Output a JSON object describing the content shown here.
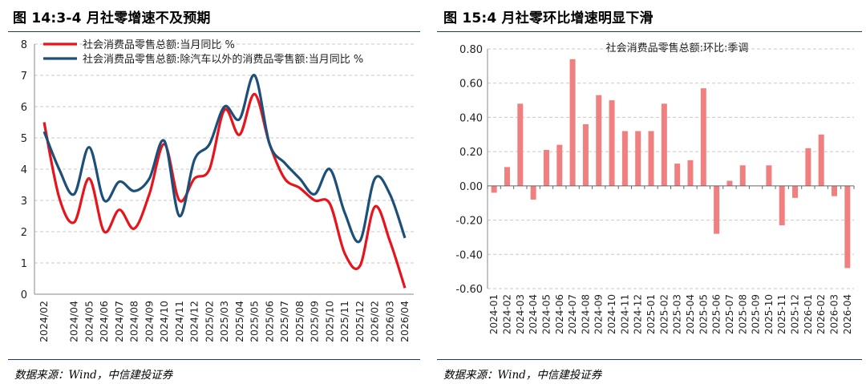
{
  "left": {
    "figure_title": "图 14:3-4 月社零增速不及预期",
    "source": "数据来源：Wind，中信建投证券",
    "chart_data": {
      "type": "line",
      "ylim": [
        0,
        8
      ],
      "yticks": [
        "0",
        "1",
        "2",
        "3",
        "4",
        "5",
        "6",
        "7",
        "8"
      ],
      "grid": "horizontal dashed",
      "legend_position": "top-left",
      "x_tick_labels": [
        "2024/02",
        "2024/04",
        "2024/05",
        "2024/06",
        "2024/07",
        "2024/08",
        "2024/09",
        "2024/10",
        "2024/11",
        "2024/12",
        "2025/02",
        "2025/03",
        "2025/04",
        "2025/05",
        "2025/06",
        "2025/07",
        "2025/08",
        "2025/09",
        "2025/10",
        "2025/11",
        "2025/12",
        "2026/02",
        "2026/03",
        "2026/04"
      ],
      "x": [
        "2024/02",
        "2024/03",
        "2024/04",
        "2024/05",
        "2024/06",
        "2024/07",
        "2024/08",
        "2024/09",
        "2024/10",
        "2024/11",
        "2024/12",
        "2025/02",
        "2025/03",
        "2025/04",
        "2025/05",
        "2025/06",
        "2025/07",
        "2025/08",
        "2025/09",
        "2025/10",
        "2025/11",
        "2025/12",
        "2026/02",
        "2026/03",
        "2026/04"
      ],
      "series": [
        {
          "name": "社会消费品零售总额:当月同比 %",
          "color": "#e8141b",
          "values": [
            5.5,
            3.1,
            2.3,
            3.7,
            2.0,
            2.7,
            2.1,
            3.2,
            4.8,
            3.0,
            3.7,
            4.0,
            5.9,
            5.1,
            6.4,
            4.8,
            3.7,
            3.4,
            3.0,
            2.9,
            1.3,
            0.9,
            2.8,
            1.7,
            0.2
          ]
        },
        {
          "name": "社会消费品零售总额:除汽车以外的消费品零售额:当月同比 %",
          "color": "#1c4f79",
          "values": [
            5.2,
            4.0,
            3.2,
            4.7,
            3.0,
            3.6,
            3.3,
            3.7,
            4.9,
            2.5,
            4.3,
            4.8,
            6.0,
            5.6,
            7.0,
            4.8,
            4.2,
            3.7,
            3.2,
            4.0,
            2.6,
            1.7,
            3.7,
            3.2,
            1.8
          ]
        }
      ]
    }
  },
  "right": {
    "figure_title": "图 15:4 月社零环比增速明显下滑",
    "source": "数据来源：Wind，中信建投证券",
    "chart_data": {
      "type": "bar",
      "ylim": [
        -0.6,
        0.8
      ],
      "yticks": [
        "0.80",
        "0.60",
        "0.40",
        "0.20",
        "0.00",
        "-0.20",
        "-0.40",
        "-0.60"
      ],
      "grid": "horizontal dashed",
      "legend_position": "top-center",
      "categories": [
        "2024-01",
        "2024-02",
        "2024-03",
        "2024-04",
        "2024-05",
        "2024-06",
        "2024-07",
        "2024-08",
        "2024-09",
        "2024-10",
        "2024-11",
        "2024-12",
        "2025-01",
        "2025-02",
        "2025-03",
        "2025-04",
        "2025-05",
        "2025-06",
        "2025-07",
        "2025-08",
        "2025-09",
        "2025-10",
        "2025-11",
        "2025-12",
        "2026-01",
        "2026-02",
        "2026-03",
        "2026-04"
      ],
      "series": [
        {
          "name": "社会消费品零售总额:环比:季调",
          "color": "#f08080",
          "values": [
            -0.04,
            0.11,
            0.48,
            -0.08,
            0.21,
            0.24,
            0.74,
            0.36,
            0.53,
            0.5,
            0.32,
            0.32,
            0.32,
            0.48,
            0.13,
            0.15,
            0.57,
            -0.28,
            0.03,
            0.12,
            0.0,
            0.12,
            -0.23,
            -0.07,
            0.22,
            0.3,
            -0.06,
            -0.48
          ]
        }
      ]
    }
  }
}
